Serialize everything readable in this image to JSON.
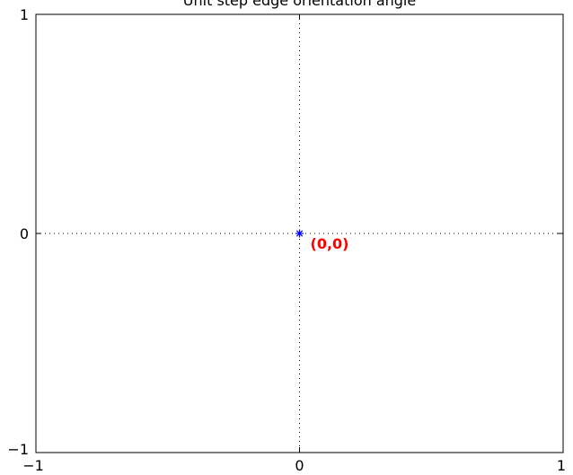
{
  "chart_data": {
    "type": "scatter",
    "title": "Unit step edge orientation angle",
    "xlabel": "",
    "ylabel": "",
    "xlim": [
      -1,
      1
    ],
    "ylim": [
      -1,
      1
    ],
    "x_ticks": [
      -1,
      0,
      1
    ],
    "y_ticks": [
      -1,
      0,
      1
    ],
    "x_tick_labels": [
      "−1",
      "0",
      "1"
    ],
    "y_tick_labels": [
      "−1",
      "0",
      "1"
    ],
    "grid": "dotted lines at x = 0 and y = 0",
    "series": [
      {
        "x": [
          0
        ],
        "y": [
          0
        ],
        "marker": "asterisk",
        "color": "#0000ff"
      }
    ],
    "annotations": [
      {
        "text": "(0,0)",
        "x": 0,
        "y": 0,
        "color": "#ff0000"
      }
    ]
  }
}
